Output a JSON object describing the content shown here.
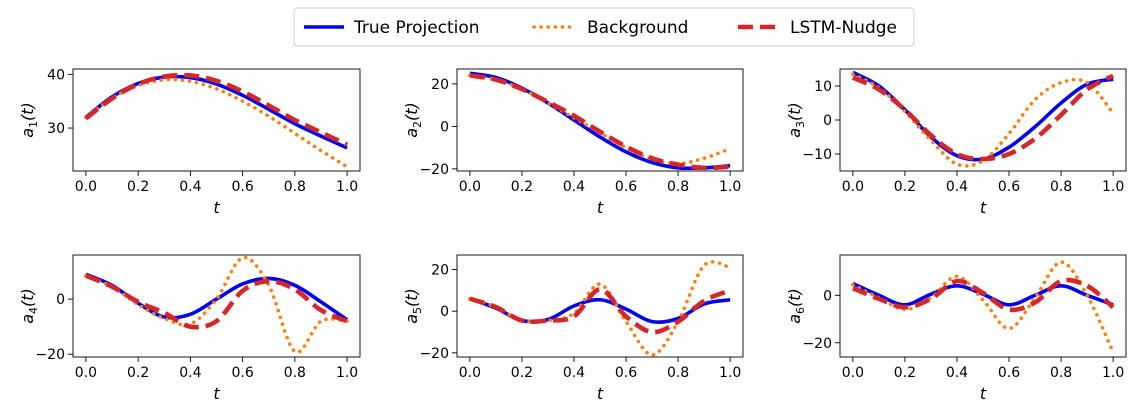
{
  "legend": {
    "entries": [
      {
        "label": "True Projection",
        "color": "#0000ee",
        "style": "solid"
      },
      {
        "label": "Background",
        "color": "#ff7f0e",
        "style": "dotted"
      },
      {
        "label": "LSTM-Nudge",
        "color": "#d62728",
        "style": "dashed"
      }
    ],
    "placement": "top-center"
  },
  "chart_data": [
    {
      "type": "line",
      "xlabel": "t",
      "ylabel": "a1(t)",
      "xlim": [
        0,
        1
      ],
      "ylim": [
        22,
        41
      ],
      "xticks": [
        "0.0",
        "0.2",
        "0.4",
        "0.6",
        "0.8",
        "1.0"
      ],
      "yticks": [
        30,
        40
      ],
      "grid": false,
      "x": [
        0.0,
        0.1,
        0.2,
        0.3,
        0.4,
        0.5,
        0.6,
        0.7,
        0.8,
        0.9,
        1.0
      ],
      "series": [
        {
          "name": "True Projection",
          "values": [
            32,
            35.8,
            38.3,
            39.5,
            39.4,
            38.2,
            36.1,
            33.5,
            30.8,
            28.5,
            26.3
          ]
        },
        {
          "name": "Background",
          "values": [
            32,
            35.6,
            37.9,
            39,
            38.7,
            37.3,
            35,
            32.2,
            29,
            25.8,
            22.8
          ]
        },
        {
          "name": "LSTM-Nudge",
          "values": [
            31.8,
            35.5,
            38.2,
            39.6,
            39.8,
            38.8,
            36.8,
            34.2,
            31.5,
            29.2,
            26.9
          ]
        }
      ]
    },
    {
      "type": "line",
      "xlabel": "t",
      "ylabel": "a2(t)",
      "xlim": [
        0,
        1
      ],
      "ylim": [
        -21,
        27
      ],
      "xticks": [
        "0.0",
        "0.2",
        "0.4",
        "0.6",
        "0.8",
        "1.0"
      ],
      "yticks": [
        -20,
        0,
        20
      ],
      "grid": false,
      "x": [
        0.0,
        0.1,
        0.2,
        0.3,
        0.4,
        0.5,
        0.6,
        0.7,
        0.8,
        0.9,
        1.0
      ],
      "series": [
        {
          "name": "True Projection",
          "values": [
            25,
            23,
            18,
            11,
            3,
            -5,
            -12,
            -17,
            -19.5,
            -19.5,
            -18.5
          ]
        },
        {
          "name": "Background",
          "values": [
            24,
            22,
            17.5,
            11,
            4,
            -3,
            -10,
            -15.5,
            -17.5,
            -15,
            -10.5
          ]
        },
        {
          "name": "LSTM-Nudge",
          "values": [
            24,
            22,
            17.5,
            11.5,
            5,
            -2.5,
            -9.5,
            -15,
            -18,
            -19.5,
            -19
          ]
        }
      ]
    },
    {
      "type": "line",
      "xlabel": "t",
      "ylabel": "a3(t)",
      "xlim": [
        0,
        1
      ],
      "ylim": [
        -15,
        15
      ],
      "xticks": [
        "0.0",
        "0.2",
        "0.4",
        "0.6",
        "0.8",
        "1.0"
      ],
      "yticks": [
        -10,
        0,
        10
      ],
      "grid": false,
      "x": [
        0.0,
        0.1,
        0.2,
        0.3,
        0.4,
        0.5,
        0.6,
        0.7,
        0.8,
        0.9,
        1.0
      ],
      "series": [
        {
          "name": "True Projection",
          "values": [
            14,
            10,
            3,
            -5,
            -10.5,
            -11.5,
            -8,
            -2,
            5,
            10.5,
            12
          ]
        },
        {
          "name": "Background",
          "values": [
            13.5,
            9.5,
            2.5,
            -6,
            -13,
            -12,
            -4,
            6,
            11,
            11,
            2
          ]
        },
        {
          "name": "LSTM-Nudge",
          "values": [
            12.5,
            9,
            3,
            -4.5,
            -10,
            -11.5,
            -10,
            -5.5,
            1.5,
            9,
            13
          ]
        }
      ]
    },
    {
      "type": "line",
      "xlabel": "t",
      "ylabel": "a4(t)",
      "xlim": [
        0,
        1
      ],
      "ylim": [
        -21,
        16
      ],
      "xticks": [
        "0.0",
        "0.2",
        "0.4",
        "0.6",
        "0.8",
        "1.0"
      ],
      "yticks": [
        -20,
        0
      ],
      "grid": false,
      "x": [
        0.0,
        0.1,
        0.2,
        0.3,
        0.4,
        0.5,
        0.6,
        0.7,
        0.8,
        0.9,
        1.0
      ],
      "series": [
        {
          "name": "True Projection",
          "values": [
            9,
            5,
            -1.5,
            -6.5,
            -5.5,
            0,
            5.5,
            7.5,
            5,
            -1,
            -7.5
          ]
        },
        {
          "name": "Background",
          "values": [
            8.5,
            4.5,
            -2,
            -7,
            -9,
            0,
            15,
            5,
            -19,
            -8,
            -8
          ]
        },
        {
          "name": "LSTM-Nudge",
          "values": [
            8.5,
            4.5,
            -1,
            -5,
            -10,
            -8,
            3,
            6.5,
            3.5,
            -4,
            -8
          ]
        }
      ]
    },
    {
      "type": "line",
      "xlabel": "t",
      "ylabel": "a5(t)",
      "xlim": [
        0,
        1
      ],
      "ylim": [
        -22,
        27
      ],
      "xticks": [
        "0.0",
        "0.2",
        "0.4",
        "0.6",
        "0.8",
        "1.0"
      ],
      "yticks": [
        -20,
        0,
        20
      ],
      "grid": false,
      "x": [
        0.0,
        0.1,
        0.2,
        0.3,
        0.4,
        0.5,
        0.6,
        0.7,
        0.8,
        0.9,
        1.0
      ],
      "series": [
        {
          "name": "True Projection",
          "values": [
            6,
            1.5,
            -4.5,
            -4,
            2.5,
            5.5,
            1,
            -5,
            -3.5,
            3.5,
            5.5
          ]
        },
        {
          "name": "Background",
          "values": [
            6,
            2,
            -4.5,
            -4.5,
            -1,
            13,
            -5,
            -21,
            -5,
            22,
            21
          ]
        },
        {
          "name": "LSTM-Nudge",
          "values": [
            6,
            2,
            -4.5,
            -4.5,
            -2.5,
            10.5,
            -2.5,
            -10,
            -5,
            5,
            10
          ]
        }
      ]
    },
    {
      "type": "line",
      "xlabel": "t",
      "ylabel": "a6(t)",
      "xlim": [
        0,
        1
      ],
      "ylim": [
        -26,
        17
      ],
      "xticks": [
        "0.0",
        "0.2",
        "0.4",
        "0.6",
        "0.8",
        "1.0"
      ],
      "yticks": [
        -20,
        0
      ],
      "grid": false,
      "x": [
        0.0,
        0.1,
        0.2,
        0.3,
        0.4,
        0.5,
        0.6,
        0.7,
        0.8,
        0.9,
        1.0
      ],
      "series": [
        {
          "name": "True Projection",
          "values": [
            5,
            0,
            -4,
            0.5,
            4,
            0.5,
            -4,
            0,
            4,
            0,
            -4
          ]
        },
        {
          "name": "Background",
          "values": [
            4.5,
            -1,
            -6,
            -1,
            8,
            -2,
            -14,
            -1,
            14,
            0,
            -24
          ]
        },
        {
          "name": "LSTM-Nudge",
          "values": [
            3,
            -1.5,
            -5,
            -1.5,
            6,
            1,
            -6,
            -3,
            6,
            4,
            -5
          ]
        }
      ]
    }
  ]
}
